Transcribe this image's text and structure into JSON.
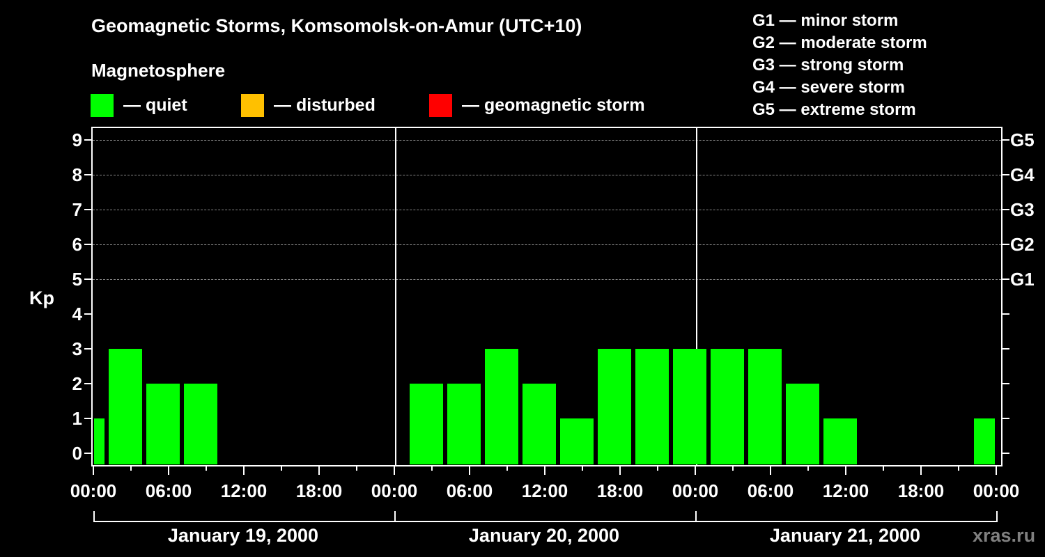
{
  "title": "Geomagnetic Storms, Komsomolsk-on-Amur (UTC+10)",
  "subtitle": "Magnetosphere",
  "legend": [
    {
      "label": "— quiet",
      "color": "#00ff00",
      "x": 130
    },
    {
      "label": "— disturbed",
      "color": "#ffc000",
      "x": 346
    },
    {
      "label": "— geomagnetic storm",
      "color": "#ff0000",
      "x": 616
    }
  ],
  "g_scale": [
    "G1 — minor storm",
    "G2 — moderate storm",
    "G3 — strong storm",
    "G4 — severe storm",
    "G5 — extreme storm"
  ],
  "watermark": "xras.ru",
  "chart_data": {
    "type": "bar",
    "title": "Geomagnetic Storms, Komsomolsk-on-Amur (UTC+10)",
    "subtitle": "Magnetosphere",
    "xlabel": "",
    "ylabel": "Kp",
    "ylim": [
      0,
      9
    ],
    "yticks": [
      0,
      1,
      2,
      3,
      4,
      5,
      6,
      7,
      8,
      9
    ],
    "right_axis_labels": [
      {
        "kp": 5,
        "label": "G1"
      },
      {
        "kp": 6,
        "label": "G2"
      },
      {
        "kp": 7,
        "label": "G3"
      },
      {
        "kp": 8,
        "label": "G4"
      },
      {
        "kp": 9,
        "label": "G5"
      }
    ],
    "grid": "dashed horizontal lines at Kp 5-9",
    "xtick_labels": [
      "00:00",
      "06:00",
      "12:00",
      "18:00",
      "00:00",
      "06:00",
      "12:00",
      "18:00",
      "00:00",
      "06:00",
      "12:00",
      "18:00",
      "00:00"
    ],
    "days": [
      "January 19, 2000",
      "January 20, 2000",
      "January 21, 2000"
    ],
    "legend": [
      {
        "label": "quiet",
        "color": "#00ff00"
      },
      {
        "label": "disturbed",
        "color": "#ffc000"
      },
      {
        "label": "geomagnetic storm",
        "color": "#ff0000"
      }
    ],
    "bars": [
      {
        "day": "January 19, 2000",
        "start": "00:00",
        "end": "01:00",
        "kp": 1,
        "status": "quiet"
      },
      {
        "day": "January 19, 2000",
        "start": "01:00",
        "end": "04:00",
        "kp": 3,
        "status": "quiet"
      },
      {
        "day": "January 19, 2000",
        "start": "04:00",
        "end": "07:00",
        "kp": 2,
        "status": "quiet"
      },
      {
        "day": "January 19, 2000",
        "start": "07:00",
        "end": "10:00",
        "kp": 2,
        "status": "quiet"
      },
      {
        "day": "January 20, 2000",
        "start": "01:00",
        "end": "04:00",
        "kp": 2,
        "status": "quiet"
      },
      {
        "day": "January 20, 2000",
        "start": "04:00",
        "end": "07:00",
        "kp": 2,
        "status": "quiet"
      },
      {
        "day": "January 20, 2000",
        "start": "07:00",
        "end": "10:00",
        "kp": 3,
        "status": "quiet"
      },
      {
        "day": "January 20, 2000",
        "start": "10:00",
        "end": "13:00",
        "kp": 2,
        "status": "quiet"
      },
      {
        "day": "January 20, 2000",
        "start": "13:00",
        "end": "16:00",
        "kp": 1,
        "status": "quiet"
      },
      {
        "day": "January 20, 2000",
        "start": "16:00",
        "end": "19:00",
        "kp": 3,
        "status": "quiet"
      },
      {
        "day": "January 20, 2000",
        "start": "19:00",
        "end": "22:00",
        "kp": 3,
        "status": "quiet"
      },
      {
        "day": "January 20, 2000",
        "start": "22:00",
        "end": "01:00",
        "kp": 3,
        "status": "quiet"
      },
      {
        "day": "January 21, 2000",
        "start": "01:00",
        "end": "04:00",
        "kp": 3,
        "status": "quiet"
      },
      {
        "day": "January 21, 2000",
        "start": "04:00",
        "end": "07:00",
        "kp": 3,
        "status": "quiet"
      },
      {
        "day": "January 21, 2000",
        "start": "07:00",
        "end": "10:00",
        "kp": 2,
        "status": "quiet"
      },
      {
        "day": "January 21, 2000",
        "start": "10:00",
        "end": "13:00",
        "kp": 1,
        "status": "quiet"
      },
      {
        "day": "January 21, 2000",
        "start": "22:00",
        "end": "24:00",
        "kp": 1,
        "status": "quiet"
      }
    ],
    "bar_geometry": [
      {
        "x0": 135,
        "x1": 150,
        "kp": 1
      },
      {
        "x0": 156,
        "x1": 204,
        "kp": 3
      },
      {
        "x0": 210,
        "x1": 258,
        "kp": 2
      },
      {
        "x0": 264,
        "x1": 312,
        "kp": 2
      },
      {
        "x0": 588,
        "x1": 636,
        "kp": 2
      },
      {
        "x0": 642,
        "x1": 690,
        "kp": 2
      },
      {
        "x0": 696,
        "x1": 744,
        "kp": 3
      },
      {
        "x0": 750,
        "x1": 798,
        "kp": 2
      },
      {
        "x0": 804,
        "x1": 852,
        "kp": 1
      },
      {
        "x0": 858,
        "x1": 906,
        "kp": 3
      },
      {
        "x0": 912,
        "x1": 960,
        "kp": 3
      },
      {
        "x0": 966,
        "x1": 1014,
        "kp": 3
      },
      {
        "x0": 1020,
        "x1": 1068,
        "kp": 3
      },
      {
        "x0": 1074,
        "x1": 1122,
        "kp": 3
      },
      {
        "x0": 1128,
        "x1": 1176,
        "kp": 2
      },
      {
        "x0": 1182,
        "x1": 1230,
        "kp": 1
      },
      {
        "x0": 1398,
        "x1": 1428,
        "kp": 1
      }
    ]
  }
}
